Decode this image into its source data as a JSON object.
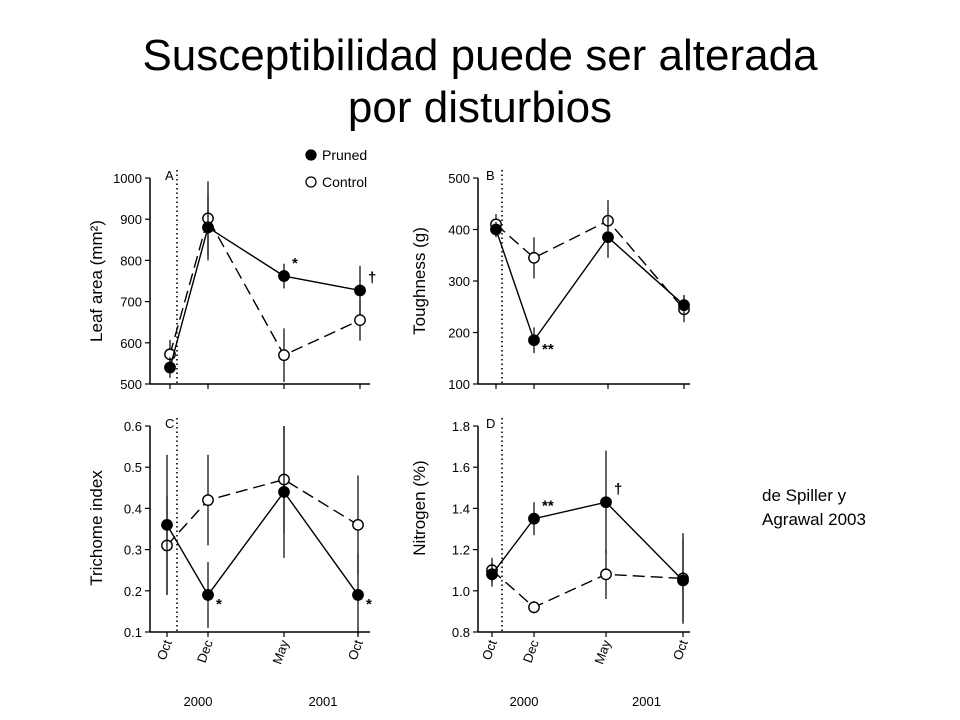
{
  "slide": {
    "title_line1": "Susceptibilidad puede ser alterada",
    "title_line2": "por disturbios",
    "citation_line1": "de Spiller y",
    "citation_line2": "Agrawal 2003"
  },
  "legend": {
    "pruned_label": "Pruned",
    "control_label": "Control",
    "placement": "top"
  },
  "x_axis": {
    "tick_labels": [
      "Oct",
      "Dec",
      "May",
      "Oct"
    ],
    "year_labels": [
      "2000",
      "2001"
    ]
  },
  "colors": {
    "pruned": "#000000",
    "control": "#ffffff",
    "ink": "#000000"
  },
  "chart_data": [
    {
      "type": "line",
      "panel": "A",
      "ylabel": "Leaf area (mm²)",
      "ylim": [
        500,
        1000
      ],
      "yticks": [
        500,
        600,
        700,
        800,
        900,
        1000
      ],
      "categories": [
        "Oct",
        "Dec",
        "May",
        "Oct"
      ],
      "series": [
        {
          "name": "Pruned",
          "values": [
            540,
            880,
            762,
            727
          ],
          "err": [
            25,
            80,
            30,
            60
          ]
        },
        {
          "name": "Control",
          "values": [
            572,
            902,
            570,
            655
          ],
          "err": [
            35,
            90,
            65,
            50
          ]
        }
      ],
      "annotations": [
        "",
        "",
        "*",
        "†"
      ]
    },
    {
      "type": "line",
      "panel": "B",
      "ylabel": "Toughness (g)",
      "ylim": [
        100,
        500
      ],
      "yticks": [
        100,
        200,
        300,
        400,
        500
      ],
      "categories": [
        "Oct",
        "Dec",
        "May",
        "Oct"
      ],
      "series": [
        {
          "name": "Pruned",
          "values": [
            400,
            185,
            385,
            253
          ],
          "err": [
            15,
            25,
            40,
            20
          ]
        },
        {
          "name": "Control",
          "values": [
            410,
            345,
            417,
            245
          ],
          "err": [
            20,
            40,
            40,
            25
          ]
        }
      ],
      "annotations": [
        "",
        "**",
        "",
        ""
      ]
    },
    {
      "type": "line",
      "panel": "C",
      "ylabel": "Trichome index",
      "ylim": [
        0.1,
        0.6
      ],
      "yticks": [
        0.1,
        0.2,
        0.3,
        0.4,
        0.5,
        0.6
      ],
      "categories": [
        "Oct",
        "Dec",
        "May",
        "Oct"
      ],
      "series": [
        {
          "name": "Pruned",
          "values": [
            0.36,
            0.19,
            0.44,
            0.19
          ],
          "err": [
            0.17,
            0.08,
            0.16,
            0.1
          ]
        },
        {
          "name": "Control",
          "values": [
            0.31,
            0.42,
            0.47,
            0.36
          ],
          "err": [
            0.12,
            0.11,
            0.13,
            0.12
          ]
        }
      ],
      "annotations": [
        "",
        "*",
        "",
        "*"
      ]
    },
    {
      "type": "line",
      "panel": "D",
      "ylabel": "Nitrogen (%)",
      "ylim": [
        0.8,
        1.8
      ],
      "yticks": [
        0.8,
        1.0,
        1.2,
        1.4,
        1.6,
        1.8
      ],
      "categories": [
        "Oct",
        "Dec",
        "May",
        "Oct"
      ],
      "series": [
        {
          "name": "Pruned",
          "values": [
            1.08,
            1.35,
            1.43,
            1.05
          ],
          "err": [
            0.06,
            0.08,
            0.25,
            0.2
          ]
        },
        {
          "name": "Control",
          "values": [
            1.1,
            0.92,
            1.08,
            1.06
          ],
          "err": [
            0.06,
            0.03,
            0.12,
            0.22
          ]
        }
      ],
      "annotations": [
        "",
        "**",
        "†",
        ""
      ]
    }
  ]
}
